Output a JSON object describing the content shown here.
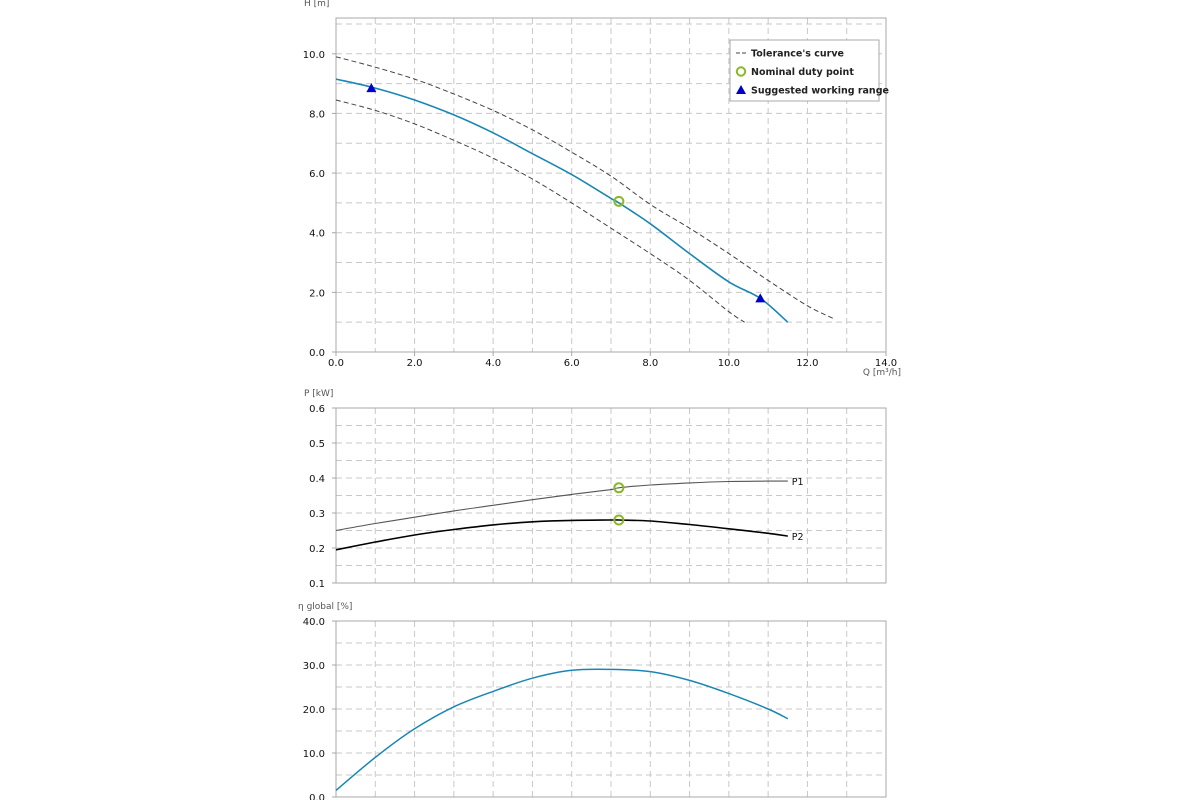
{
  "colors": {
    "main_curve": "#1a86b4",
    "tolerance": "#444444",
    "duty_marker": "#8ab826",
    "range_marker": "#0000cc",
    "p1": "#555555",
    "p2": "#000000",
    "grid": "#c8c8c8",
    "frame": "#a8a8a8"
  },
  "chart_data": [
    {
      "type": "line",
      "ylabel": "H [m]",
      "xlabel": "Q [m³/h]",
      "xlim": [
        0,
        14
      ],
      "ylim": [
        0,
        11.2
      ],
      "x_ticks": [
        "0.0",
        "2.0",
        "4.0",
        "6.0",
        "8.0",
        "10.0",
        "12.0",
        "14.0"
      ],
      "y_ticks": [
        "0.0",
        "2.0",
        "4.0",
        "6.0",
        "8.0",
        "10.0"
      ],
      "legend": {
        "position": "top-right",
        "items": [
          {
            "label": "Tolerance's curve",
            "symbol": "dash"
          },
          {
            "label": "Nominal duty point",
            "symbol": "circle"
          },
          {
            "label": "Suggested working range",
            "symbol": "triangle"
          }
        ]
      },
      "series": [
        {
          "role": "head",
          "x": [
            0.0,
            1.0,
            2.0,
            3.0,
            4.0,
            5.0,
            6.0,
            7.0,
            7.2,
            8.0,
            9.0,
            10.0,
            10.8,
            11.5
          ],
          "y": [
            9.15,
            8.85,
            8.45,
            7.95,
            7.35,
            6.65,
            5.95,
            5.15,
            5.0,
            4.3,
            3.3,
            2.35,
            1.8,
            1.0
          ]
        },
        {
          "role": "tolerance-upper",
          "x": [
            0.0,
            1.0,
            2.0,
            3.0,
            4.0,
            5.0,
            6.0,
            7.0,
            8.0,
            9.0,
            10.0,
            11.0,
            12.0,
            12.7
          ],
          "y": [
            9.9,
            9.55,
            9.15,
            8.65,
            8.1,
            7.45,
            6.7,
            5.9,
            4.95,
            4.15,
            3.3,
            2.4,
            1.55,
            1.1
          ]
        },
        {
          "role": "tolerance-lower",
          "x": [
            0.0,
            1.0,
            2.0,
            3.0,
            4.0,
            5.0,
            6.0,
            7.0,
            8.0,
            9.0,
            10.0,
            10.4
          ],
          "y": [
            8.45,
            8.1,
            7.65,
            7.1,
            6.5,
            5.8,
            5.0,
            4.15,
            3.3,
            2.4,
            1.35,
            1.0
          ]
        }
      ],
      "duty_points": [
        {
          "x": 7.2,
          "y": 5.05
        }
      ],
      "range_points": [
        {
          "x": 0.9,
          "y": 8.85
        },
        {
          "x": 10.8,
          "y": 1.8
        }
      ]
    },
    {
      "type": "line",
      "ylabel": "P [kW]",
      "xlim": [
        0,
        14
      ],
      "ylim": [
        0.1,
        0.6
      ],
      "y_ticks": [
        "0.1",
        "0.2",
        "0.3",
        "0.4",
        "0.5",
        "0.6"
      ],
      "series": [
        {
          "name": "P1",
          "x": [
            0.0,
            1.0,
            2.0,
            3.0,
            4.0,
            5.0,
            6.0,
            7.0,
            7.2,
            8.0,
            9.0,
            10.0,
            11.0,
            11.5
          ],
          "y": [
            0.25,
            0.27,
            0.288,
            0.306,
            0.322,
            0.338,
            0.353,
            0.367,
            0.372,
            0.38,
            0.386,
            0.39,
            0.391,
            0.391
          ]
        },
        {
          "name": "P2",
          "x": [
            0.0,
            1.0,
            2.0,
            3.0,
            4.0,
            5.0,
            6.0,
            7.0,
            7.2,
            8.0,
            9.0,
            10.0,
            11.0,
            11.5
          ],
          "y": [
            0.195,
            0.217,
            0.237,
            0.253,
            0.266,
            0.275,
            0.279,
            0.28,
            0.28,
            0.277,
            0.267,
            0.255,
            0.242,
            0.234
          ]
        }
      ],
      "duty_points": [
        {
          "x": 7.2,
          "y": 0.372
        },
        {
          "x": 7.2,
          "y": 0.28
        }
      ]
    },
    {
      "type": "line",
      "ylabel": "η global [%]",
      "xlim": [
        0,
        14
      ],
      "ylim": [
        0,
        40
      ],
      "y_ticks": [
        "0.0",
        "10.0",
        "20.0",
        "30.0",
        "40.0"
      ],
      "series": [
        {
          "role": "efficiency",
          "x": [
            0.0,
            1.0,
            2.0,
            3.0,
            4.0,
            5.0,
            6.0,
            7.0,
            8.0,
            9.0,
            10.0,
            11.0,
            11.5
          ],
          "y": [
            1.5,
            9.0,
            15.5,
            20.5,
            24.0,
            27.0,
            28.8,
            29.0,
            28.5,
            26.5,
            23.5,
            20.0,
            17.8
          ]
        }
      ]
    }
  ]
}
